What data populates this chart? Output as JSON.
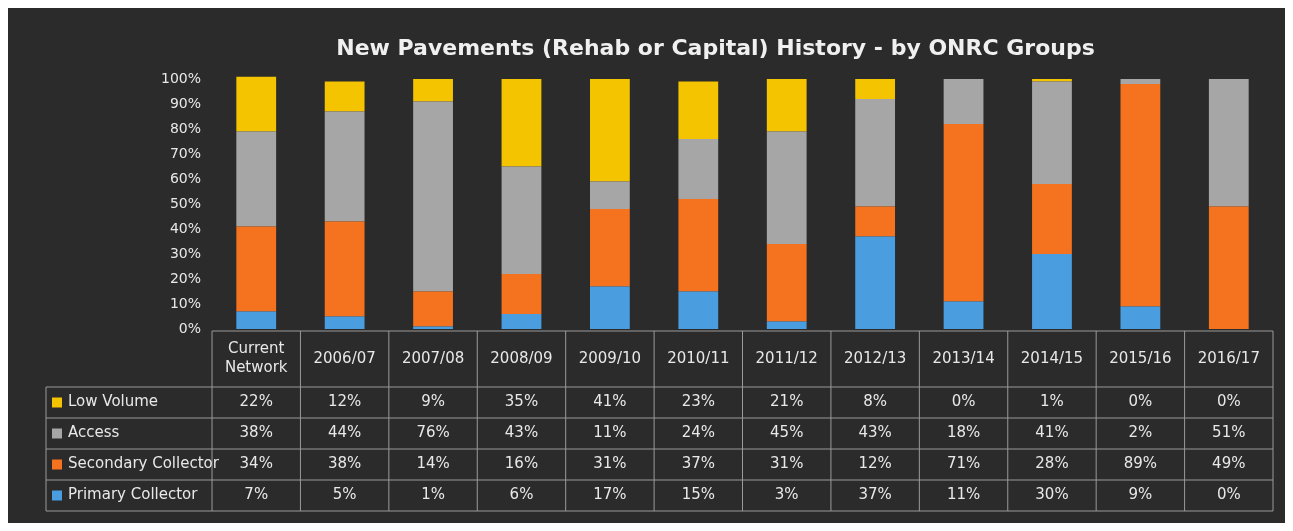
{
  "chart_data": {
    "type": "bar",
    "stacked": true,
    "title": "New Pavements (Rehab or Capital) History - by ONRC Groups",
    "categories": [
      "Current Network",
      "2006/07",
      "2007/08",
      "2008/09",
      "2009/10",
      "2010/11",
      "2011/12",
      "2012/13",
      "2013/14",
      "2014/15",
      "2015/16",
      "2016/17"
    ],
    "ylim": [
      0,
      101
    ],
    "legend": "bottom left",
    "data_labels": true,
    "yticks": [
      {
        "value": 0,
        "label": "0%"
      },
      {
        "value": 10,
        "label": "10%"
      },
      {
        "value": 20,
        "label": "20%"
      },
      {
        "value": 30,
        "label": "30%"
      },
      {
        "value": 40,
        "label": "40%"
      },
      {
        "value": 50,
        "label": "50%"
      },
      {
        "value": 60,
        "label": "60%"
      },
      {
        "value": 70,
        "label": "70%"
      },
      {
        "value": 80,
        "label": "80%"
      },
      {
        "value": 90,
        "label": "90%"
      },
      {
        "value": 100,
        "label": "100%"
      }
    ],
    "series": [
      {
        "name": "Primary Collector",
        "color": "#4a9ee0",
        "values": [
          7,
          5,
          1,
          6,
          17,
          15,
          3,
          37,
          11,
          30,
          9,
          0
        ],
        "value_labels": [
          "7%",
          "5%",
          "1%",
          "6%",
          "17%",
          "15%",
          "3%",
          "37%",
          "11%",
          "30%",
          "9%",
          "0%"
        ]
      },
      {
        "name": "Secondary Collector",
        "color": "#f5731e",
        "values": [
          34,
          38,
          14,
          16,
          31,
          37,
          31,
          12,
          71,
          28,
          89,
          49
        ],
        "value_labels": [
          "34%",
          "38%",
          "14%",
          "16%",
          "31%",
          "37%",
          "31%",
          "12%",
          "71%",
          "28%",
          "89%",
          "49%"
        ]
      },
      {
        "name": "Access",
        "color": "#a6a6a6",
        "values": [
          38,
          44,
          76,
          43,
          11,
          24,
          45,
          43,
          18,
          41,
          2,
          51
        ],
        "value_labels": [
          "38%",
          "44%",
          "76%",
          "43%",
          "11%",
          "24%",
          "45%",
          "43%",
          "18%",
          "41%",
          "2%",
          "51%"
        ]
      },
      {
        "name": "Low Volume",
        "color": "#f5c400",
        "values": [
          22,
          12,
          9,
          35,
          41,
          23,
          21,
          8,
          0,
          1,
          0,
          0
        ],
        "value_labels": [
          "22%",
          "12%",
          "9%",
          "35%",
          "41%",
          "23%",
          "21%",
          "8%",
          "0%",
          "1%",
          "0%",
          "0%"
        ]
      }
    ]
  }
}
